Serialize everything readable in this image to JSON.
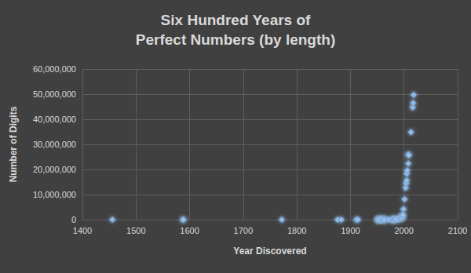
{
  "chart_data": {
    "type": "scatter",
    "title": "Six Hundred Years of\nPerfect Numbers (by length)",
    "x_label": "Year Discovered",
    "y_label": "Number of Digits",
    "x": [
      1456,
      1588,
      1588,
      1772,
      1876,
      1883,
      1911,
      1914,
      1952,
      1952,
      1952,
      1952,
      1952,
      1957,
      1961,
      1961,
      1963,
      1963,
      1963,
      1971,
      1978,
      1979,
      1979,
      1982,
      1988,
      1983,
      1985,
      1992,
      1994,
      1996,
      1996,
      1997,
      1998,
      1999,
      2001,
      2003,
      2004,
      2005,
      2005,
      2006,
      2008,
      2008,
      2009,
      2013,
      2016,
      2017,
      2018
    ],
    "values": [
      8,
      10,
      12,
      19,
      77,
      37,
      54,
      65,
      314,
      366,
      770,
      1327,
      1373,
      1937,
      2561,
      2663,
      5834,
      5985,
      6751,
      12003,
      13066,
      13973,
      26790,
      51924,
      66530,
      79502,
      130100,
      455663,
      517430,
      757263,
      841842,
      1791864,
      1819050,
      4197919,
      8107892,
      12640858,
      14471465,
      15632458,
      18304103,
      19616714,
      22370543,
      25956377,
      25674127,
      34850340,
      44677235,
      46498850,
      49724095
    ],
    "color": "#9cc3ea",
    "marker": "diamond",
    "xlim": [
      1400,
      2100
    ],
    "xticks": [
      1400,
      1500,
      1600,
      1700,
      1800,
      1900,
      2000,
      2100
    ],
    "ylim": [
      0,
      60000000
    ],
    "yticks": [
      0,
      {
        "value": 10000000,
        "label": "10,000,000"
      },
      {
        "value": 20000000,
        "label": "20,000,000"
      },
      {
        "value": 30000000,
        "label": "30,000,000"
      },
      {
        "value": 40000000,
        "label": "40,000,000"
      },
      {
        "value": 50000000,
        "label": "50,000,000"
      },
      {
        "value": 60000000,
        "label": "60,000,000"
      }
    ],
    "grid": true
  }
}
